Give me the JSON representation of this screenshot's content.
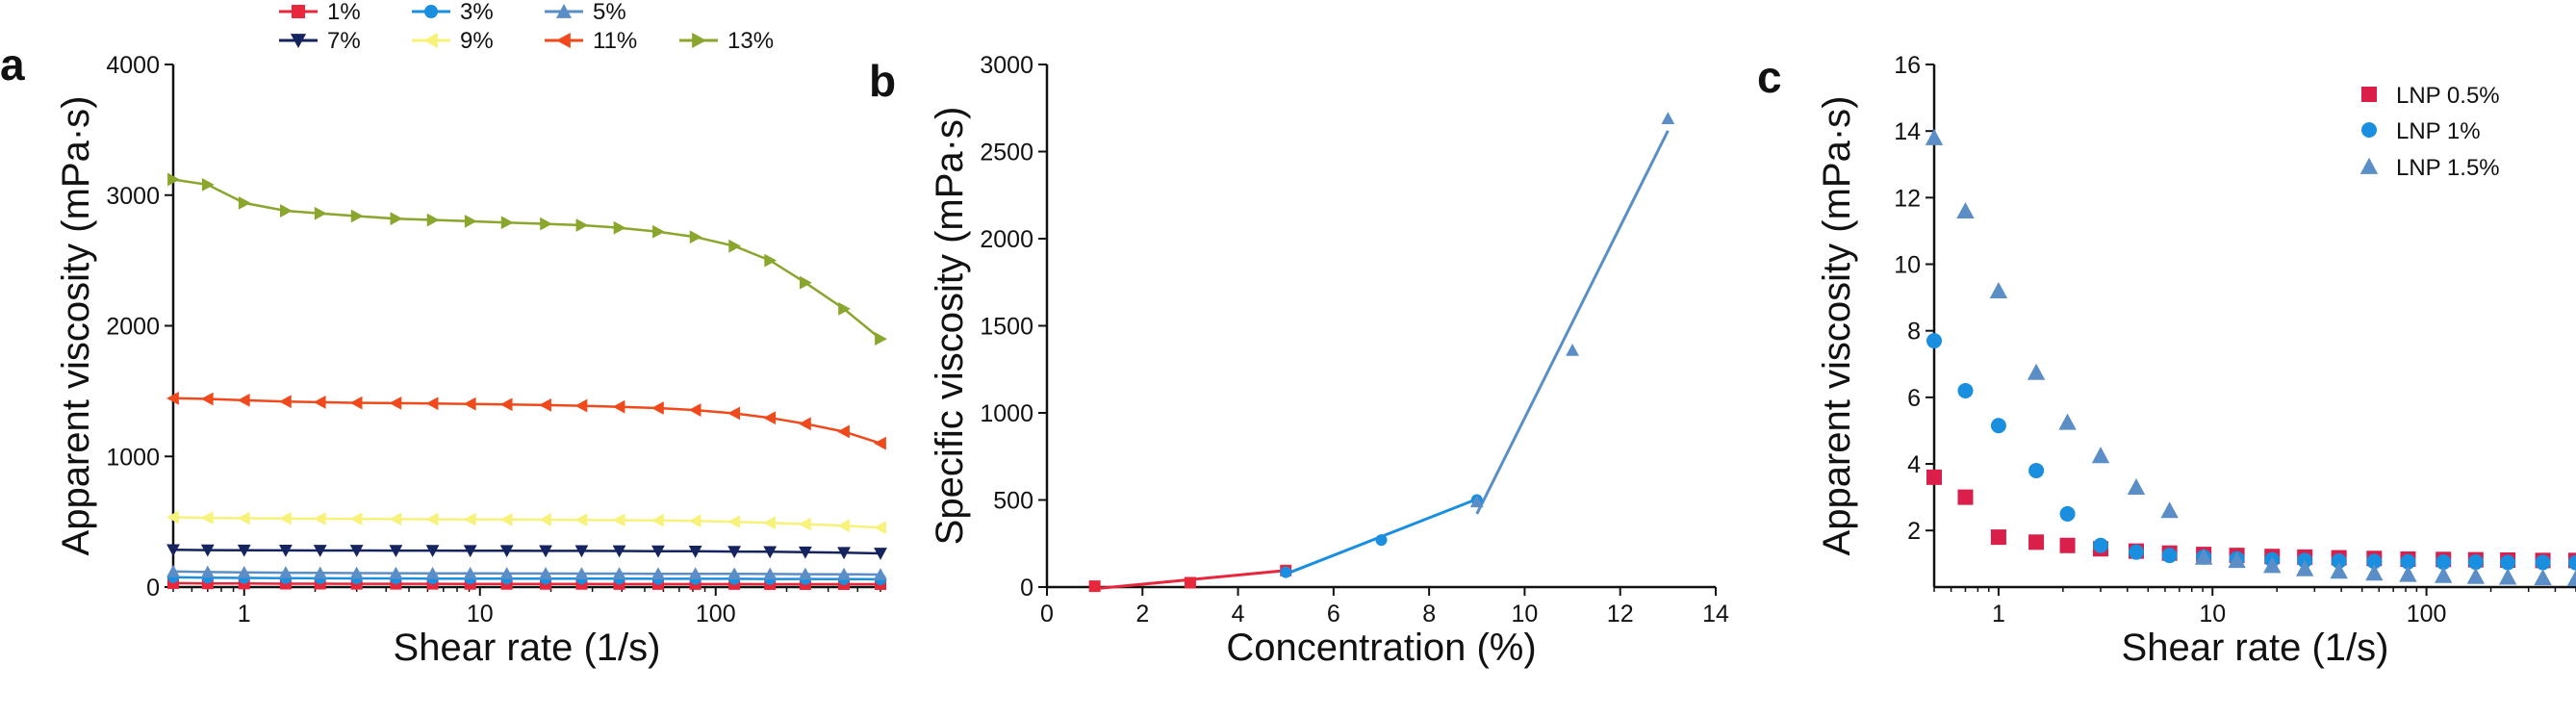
{
  "chart_data": [
    {
      "panel": "a",
      "type": "line",
      "xscale": "log",
      "xlabel": "Shear rate (1/s)",
      "ylabel": "Apparent viscosity (mPa·s)",
      "xlim": [
        0.5,
        500
      ],
      "ylim": [
        0,
        4000
      ],
      "xticks": [
        1,
        10,
        100
      ],
      "xtick_labels": [
        "1",
        "10",
        "100"
      ],
      "yticks": [
        0,
        1000,
        2000,
        3000,
        4000
      ],
      "ytick_labels": [
        "0",
        "1000",
        "2000",
        "3000",
        "4000"
      ],
      "x": [
        0.5,
        0.7,
        1.0,
        1.5,
        2.1,
        3.0,
        4.4,
        6.3,
        9.1,
        13,
        19,
        27,
        39,
        57,
        82,
        120,
        170,
        240,
        350,
        500
      ],
      "legend_position": "top",
      "series": [
        {
          "name": "1%",
          "color": "#e8263c",
          "marker": "square",
          "values": [
            30,
            28,
            27,
            26,
            26,
            25,
            25,
            25,
            24,
            24,
            24,
            24,
            23,
            23,
            23,
            23,
            22,
            22,
            22,
            22
          ]
        },
        {
          "name": "3%",
          "color": "#1a8fe0",
          "marker": "circle",
          "values": [
            75,
            72,
            70,
            68,
            67,
            66,
            66,
            65,
            65,
            65,
            64,
            64,
            64,
            63,
            63,
            63,
            62,
            62,
            61,
            60
          ]
        },
        {
          "name": "5%",
          "color": "#5b8ec7",
          "marker": "triangle-up",
          "values": [
            120,
            115,
            112,
            110,
            108,
            107,
            106,
            105,
            105,
            104,
            104,
            103,
            103,
            102,
            102,
            101,
            100,
            99,
            98,
            96
          ]
        },
        {
          "name": "7%",
          "color": "#15245e",
          "marker": "triangle-down",
          "values": [
            285,
            283,
            282,
            281,
            280,
            280,
            279,
            279,
            278,
            278,
            277,
            277,
            276,
            275,
            274,
            272,
            270,
            267,
            263,
            258
          ]
        },
        {
          "name": "9%",
          "color": "#f7f27a",
          "marker": "triangle-left",
          "values": [
            535,
            530,
            527,
            525,
            523,
            522,
            520,
            519,
            518,
            517,
            516,
            514,
            512,
            510,
            506,
            500,
            492,
            482,
            470,
            455
          ]
        },
        {
          "name": "11%",
          "color": "#f04a1c",
          "marker": "triangle-left",
          "values": [
            1445,
            1440,
            1430,
            1420,
            1415,
            1410,
            1408,
            1405,
            1402,
            1398,
            1393,
            1388,
            1380,
            1370,
            1355,
            1330,
            1295,
            1250,
            1190,
            1100
          ]
        },
        {
          "name": "13%",
          "color": "#8aa62c",
          "marker": "triangle-right",
          "values": [
            3120,
            3080,
            2940,
            2880,
            2860,
            2840,
            2820,
            2810,
            2800,
            2790,
            2780,
            2770,
            2750,
            2720,
            2680,
            2610,
            2500,
            2330,
            2130,
            1900
          ]
        }
      ]
    },
    {
      "panel": "b",
      "type": "scatter",
      "xlabel": "Concentration (%)",
      "ylabel": "Specific viscosity (mPa·s)",
      "xlim": [
        0,
        14
      ],
      "ylim": [
        0,
        3000
      ],
      "xticks": [
        0,
        2,
        4,
        6,
        8,
        10,
        12,
        14
      ],
      "xtick_labels": [
        "0",
        "2",
        "4",
        "6",
        "8",
        "10",
        "12",
        "14"
      ],
      "yticks": [
        0,
        500,
        1000,
        1500,
        2000,
        2500,
        3000
      ],
      "ytick_labels": [
        "0",
        "500",
        "1000",
        "1500",
        "2000",
        "2500",
        "3000"
      ],
      "points": [
        {
          "x": 1,
          "y": 5,
          "color": "#e8263c",
          "marker": "square"
        },
        {
          "x": 3,
          "y": 25,
          "color": "#e8263c",
          "marker": "square"
        },
        {
          "x": 5,
          "y": 95,
          "color": "#e8263c",
          "marker": "square"
        },
        {
          "x": 5,
          "y": 85,
          "color": "#1a8fe0",
          "marker": "circle"
        },
        {
          "x": 7,
          "y": 270,
          "color": "#1a8fe0",
          "marker": "circle"
        },
        {
          "x": 9,
          "y": 500,
          "color": "#1a8fe0",
          "marker": "circle"
        },
        {
          "x": 9,
          "y": 490,
          "color": "#5b8ec7",
          "marker": "triangle-up"
        },
        {
          "x": 11,
          "y": 1360,
          "color": "#5b8ec7",
          "marker": "triangle-up"
        },
        {
          "x": 13,
          "y": 2690,
          "color": "#5b8ec7",
          "marker": "triangle-up"
        }
      ],
      "fit_lines": [
        {
          "color": "#e8263c",
          "x": [
            1,
            5
          ],
          "y": [
            -10,
            95
          ]
        },
        {
          "color": "#1a8fe0",
          "x": [
            5,
            9
          ],
          "y": [
            75,
            505
          ]
        },
        {
          "color": "#5b8ec7",
          "x": [
            9,
            13
          ],
          "y": [
            420,
            2620
          ]
        }
      ]
    },
    {
      "panel": "c",
      "type": "scatter",
      "xscale": "log",
      "xlabel": "Shear rate (1/s)",
      "ylabel": "Apparent viscosity (mPa·s)",
      "xlim": [
        0.5,
        500
      ],
      "ylim": [
        0.3,
        16
      ],
      "xticks": [
        1,
        10,
        100
      ],
      "xtick_labels": [
        "1",
        "10",
        "100"
      ],
      "yticks": [
        2,
        4,
        6,
        8,
        10,
        12,
        14,
        16
      ],
      "ytick_labels": [
        "2",
        "4",
        "6",
        "8",
        "10",
        "12",
        "14",
        "16"
      ],
      "x": [
        0.5,
        0.7,
        1.0,
        1.5,
        2.1,
        3.0,
        4.4,
        6.3,
        9.1,
        13,
        19,
        27,
        39,
        57,
        82,
        120,
        170,
        240,
        350,
        500
      ],
      "legend_position": "top-right",
      "series": [
        {
          "name": "LNP 0.5%",
          "color": "#d91f4a",
          "marker": "square",
          "values": [
            3.6,
            3.0,
            1.8,
            1.65,
            1.55,
            1.45,
            1.38,
            1.32,
            1.28,
            1.25,
            1.22,
            1.2,
            1.18,
            1.16,
            1.14,
            1.13,
            1.12,
            1.11,
            1.1,
            1.1
          ]
        },
        {
          "name": "LNP 1%",
          "color": "#1a8fe0",
          "marker": "circle",
          "values": [
            7.7,
            6.2,
            5.15,
            3.8,
            2.5,
            1.55,
            1.35,
            1.25,
            1.2,
            1.15,
            1.12,
            1.1,
            1.08,
            1.07,
            1.06,
            1.05,
            1.05,
            1.04,
            1.04,
            1.03
          ]
        },
        {
          "name": "LNP 1.5%",
          "color": "#5b8ec7",
          "marker": "triangle-up",
          "values": [
            13.8,
            11.6,
            9.2,
            6.75,
            5.25,
            4.25,
            3.3,
            2.6,
            1.2,
            1.1,
            0.95,
            0.85,
            0.78,
            0.72,
            0.68,
            0.65,
            0.62,
            0.6,
            0.58,
            0.56
          ]
        }
      ]
    }
  ]
}
